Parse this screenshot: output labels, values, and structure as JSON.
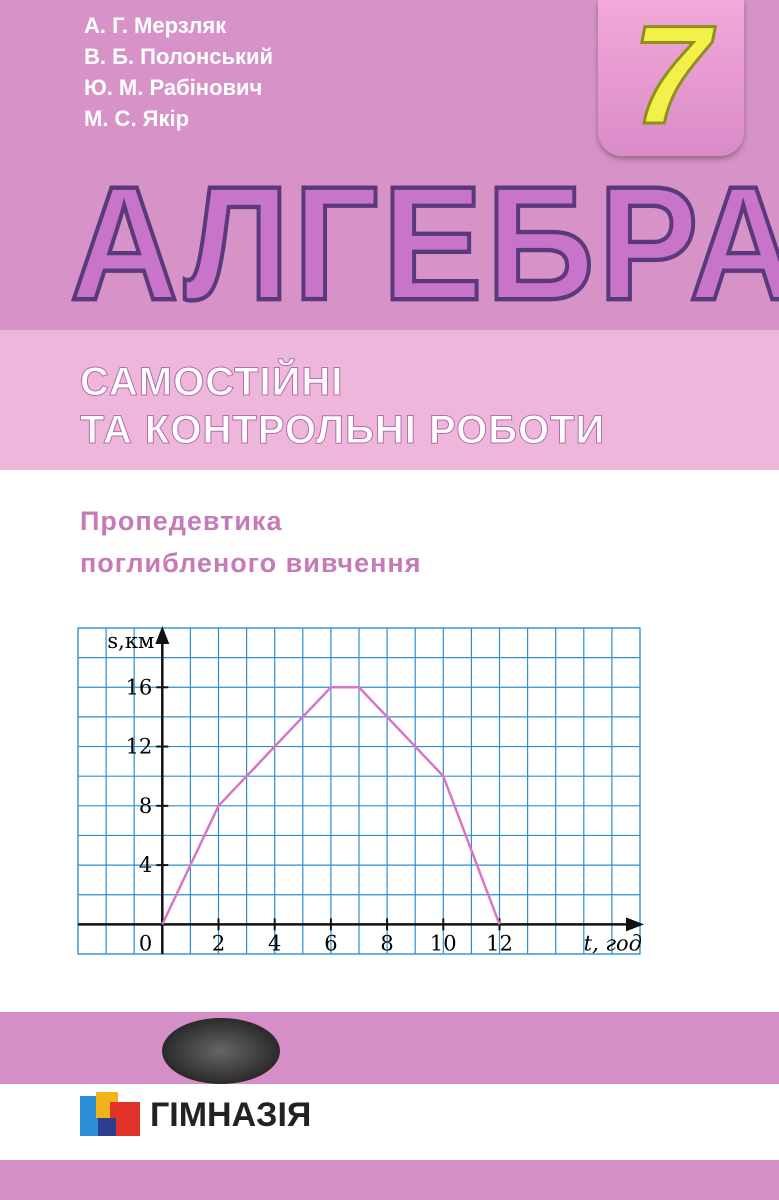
{
  "authors": [
    "А. Г. Мерзляк",
    "В. Б. Полонський",
    "Ю. М. Рабінович",
    "М. С. Якір"
  ],
  "grade": "7",
  "title": "АЛГЕБРА",
  "subtitle": [
    "Самостійні",
    "та контрольні роботи"
  ],
  "note": [
    "Пропедевтика",
    "поглибленого вивчення"
  ],
  "publisher": "ГІМНАЗІЯ",
  "chart_data": {
    "type": "line",
    "x_label": "t, год",
    "y_label": "s,км",
    "origin_label": "0",
    "x": [
      0,
      2,
      4,
      6,
      7,
      10,
      12
    ],
    "series": [
      {
        "color": "#d776c4",
        "values": [
          0,
          8,
          12,
          16,
          16,
          10,
          0
        ]
      }
    ],
    "xlim": [
      -3,
      17
    ],
    "ylim": [
      -2,
      20
    ],
    "xticks": [
      2,
      4,
      6,
      8,
      10,
      12
    ],
    "yticks": [
      4,
      8,
      12,
      16
    ],
    "grid": true
  }
}
